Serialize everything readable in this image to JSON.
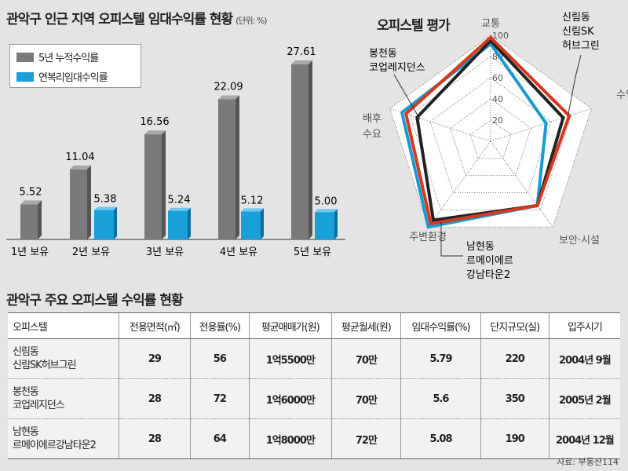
{
  "title": "관악구 인근 지역 오피스텔 임대수익률 현황",
  "unit": "(단위: %)",
  "chart_data": [
    {
      "type": "bar",
      "title": "관악구 인근 지역 오피스텔 임대수익률 현황",
      "ylabel": "%",
      "categories": [
        "1년 보유",
        "2년 보유",
        "3년 보유",
        "4년 보유",
        "5년 보유"
      ],
      "series": [
        {
          "name": "5년 누적수익률",
          "color": "#7a7a7a",
          "values": [
            5.52,
            11.04,
            16.56,
            22.09,
            27.61
          ]
        },
        {
          "name": "연복리임대수익률",
          "color": "#1aa0d8",
          "values": [
            null,
            5.38,
            5.24,
            5.12,
            5.0
          ]
        }
      ],
      "labels": [
        [
          "5.52",
          "11.04",
          "16.56",
          "22.09",
          "27.61"
        ],
        [
          "",
          "5.38",
          "5.24",
          "5.12",
          "5.00"
        ]
      ],
      "legend": "top-left"
    },
    {
      "type": "radar",
      "title": "오피스텔 평가",
      "axes": [
        "교통",
        "수익성",
        "보안·시설",
        "주변환경",
        "배후수요"
      ],
      "ticks": [
        "20",
        "40",
        "60",
        "80",
        "100"
      ],
      "range": [
        0,
        100
      ],
      "series": [
        {
          "name": "신림동 신림SK 허브그린",
          "color": "#d6381c",
          "values": [
            98,
            78,
            75,
            96,
            84
          ]
        },
        {
          "name": "봉천동 코업레지던스",
          "color": "#222222",
          "values": [
            95,
            72,
            75,
            92,
            73
          ]
        },
        {
          "name": "남현동 르메이에르 강남타운2",
          "color": "#1a9ad2",
          "values": [
            92,
            55,
            75,
            100,
            88
          ]
        }
      ]
    }
  ],
  "radar_labels": {
    "s1": [
      "신림동",
      "신림SK",
      "허브그린"
    ],
    "s2": [
      "봉천동",
      "코업레지던스"
    ],
    "s3": [
      "남현동",
      "르메이에르",
      "강남타운2"
    ],
    "ax4": [
      "배후",
      "수요"
    ]
  },
  "table": {
    "title": "관악구 주요 오피스텔 수익률 현황",
    "headers": [
      "오피스텔",
      "전용면적(㎡)",
      "전용률(%)",
      "평균매매가(원)",
      "평균월세(원)",
      "임대수익률(%)",
      "단지규모(실)",
      "입주시기"
    ],
    "rows": [
      {
        "name": [
          "신림동",
          "신림SK허브그린"
        ],
        "cells": [
          "29",
          "56",
          "1억5500만",
          "70만",
          "5.79",
          "220",
          "2004년 9월"
        ]
      },
      {
        "name": [
          "봉천동",
          "코업레지던스"
        ],
        "cells": [
          "28",
          "72",
          "1억6000만",
          "70만",
          "5.6",
          "350",
          "2005년 2월"
        ]
      },
      {
        "name": [
          "남현동",
          "르메이에르강남타운2"
        ],
        "cells": [
          "28",
          "64",
          "1억8000만",
          "72만",
          "5.08",
          "190",
          "2004년 12월"
        ]
      }
    ]
  },
  "source": "자료: 부동산114"
}
